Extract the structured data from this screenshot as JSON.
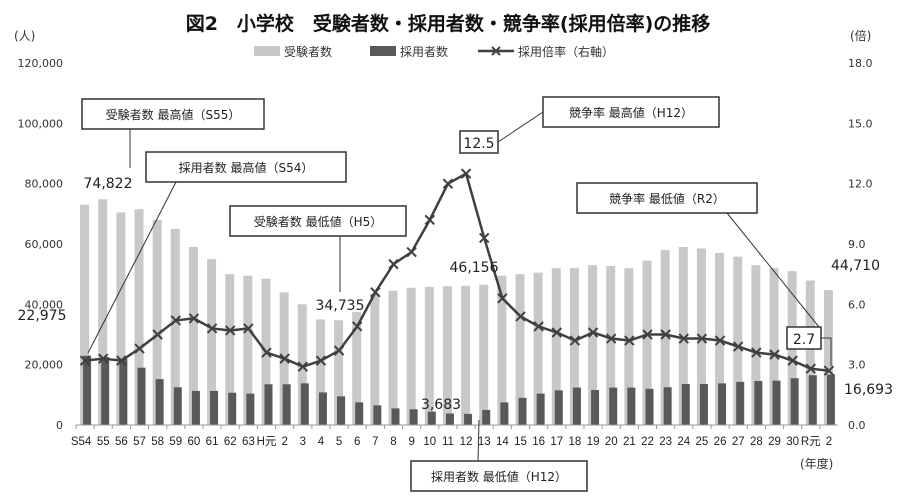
{
  "chart_data": {
    "type": "bar",
    "title": "図2　小学校　受験者数・採用者数・競争率(採用倍率)の推移",
    "ylabel_left": "(人)",
    "ylabel_right": "(倍)",
    "xlabel": "(年度)",
    "ylim_left": [
      0,
      120000
    ],
    "ylim_right": [
      0,
      18
    ],
    "yticks_left": [
      "0",
      "20,000",
      "40,000",
      "60,000",
      "80,000",
      "100,000",
      "120,000"
    ],
    "yticks_right": [
      "0.0",
      "3.0",
      "6.0",
      "9.0",
      "12.0",
      "15.0",
      "18.0"
    ],
    "legend": [
      "受験者数",
      "採用者数",
      "採用倍率（右軸）"
    ],
    "legend_position": "top",
    "categories": [
      "S54",
      "55",
      "56",
      "57",
      "58",
      "59",
      "60",
      "61",
      "62",
      "63",
      "H元",
      "2",
      "3",
      "4",
      "5",
      "6",
      "7",
      "8",
      "9",
      "10",
      "11",
      "12",
      "13",
      "14",
      "15",
      "16",
      "17",
      "18",
      "19",
      "20",
      "21",
      "22",
      "23",
      "24",
      "25",
      "26",
      "27",
      "28",
      "29",
      "30",
      "R元",
      "2"
    ],
    "series": [
      {
        "name": "受験者数",
        "type": "bar",
        "axis": "left",
        "color": "#c8c8c8",
        "values": [
          73000,
          74822,
          70500,
          71500,
          68000,
          65000,
          59000,
          55000,
          50000,
          49500,
          48500,
          44000,
          40000,
          35000,
          34735,
          37500,
          43500,
          44500,
          45500,
          45800,
          46000,
          46156,
          46500,
          49500,
          50000,
          50500,
          52000,
          52000,
          53000,
          52700,
          52000,
          54500,
          58000,
          59000,
          58500,
          57000,
          55800,
          53000,
          52000,
          51000,
          47900,
          44710
        ]
      },
      {
        "name": "採用者数",
        "type": "bar",
        "axis": "left",
        "color": "#595959",
        "values": [
          22975,
          22500,
          22000,
          19000,
          15200,
          12500,
          11300,
          11300,
          10700,
          10400,
          13500,
          13500,
          13800,
          10800,
          9500,
          7500,
          6500,
          5500,
          5200,
          4400,
          3800,
          3683,
          5000,
          7500,
          9000,
          10400,
          11500,
          12400,
          11600,
          12400,
          12400,
          12000,
          12500,
          13600,
          13600,
          13800,
          14300,
          14600,
          14700,
          15500,
          16500,
          16693
        ]
      },
      {
        "name": "採用倍率（右軸）",
        "type": "line",
        "axis": "right",
        "color": "#404040",
        "values": [
          3.2,
          3.3,
          3.2,
          3.8,
          4.5,
          5.2,
          5.3,
          4.8,
          4.7,
          4.8,
          3.6,
          3.3,
          2.9,
          3.2,
          3.7,
          4.9,
          6.6,
          8.0,
          8.6,
          10.2,
          12.0,
          12.5,
          9.3,
          6.3,
          5.4,
          4.9,
          4.6,
          4.2,
          4.6,
          4.3,
          4.2,
          4.5,
          4.5,
          4.3,
          4.3,
          4.2,
          3.9,
          3.6,
          3.5,
          3.2,
          2.8,
          2.7
        ]
      }
    ],
    "data_labels": [
      "74,822",
      "22,975",
      "34,735",
      "46,156",
      "3,683",
      "44,710",
      "16,693",
      "12.5",
      "2.7"
    ],
    "annotations": [
      "受験者数 最高値（S55）",
      "採用者数 最高値（S54）",
      "受験者数 最低値（H5）",
      "競争率 最高値（H12）",
      "競争率 最低値（R2）",
      "採用者数 最低値（H12）"
    ]
  }
}
